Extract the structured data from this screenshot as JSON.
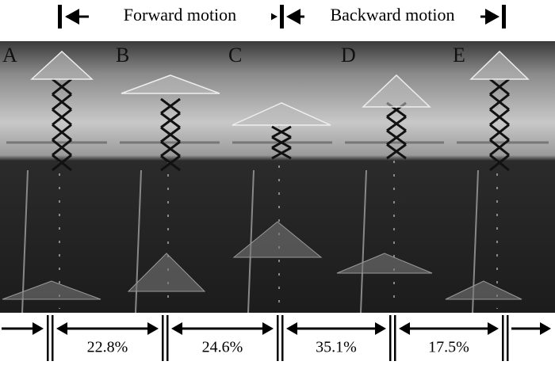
{
  "header": {
    "forward": "Forward  motion",
    "backward": "Backward motion"
  },
  "panels": [
    {
      "label": "A"
    },
    {
      "label": "B"
    },
    {
      "label": "C"
    },
    {
      "label": "D"
    },
    {
      "label": "E"
    }
  ],
  "intervals": [
    "22.8%",
    "24.6%",
    "35.1%",
    "17.5%"
  ]
}
